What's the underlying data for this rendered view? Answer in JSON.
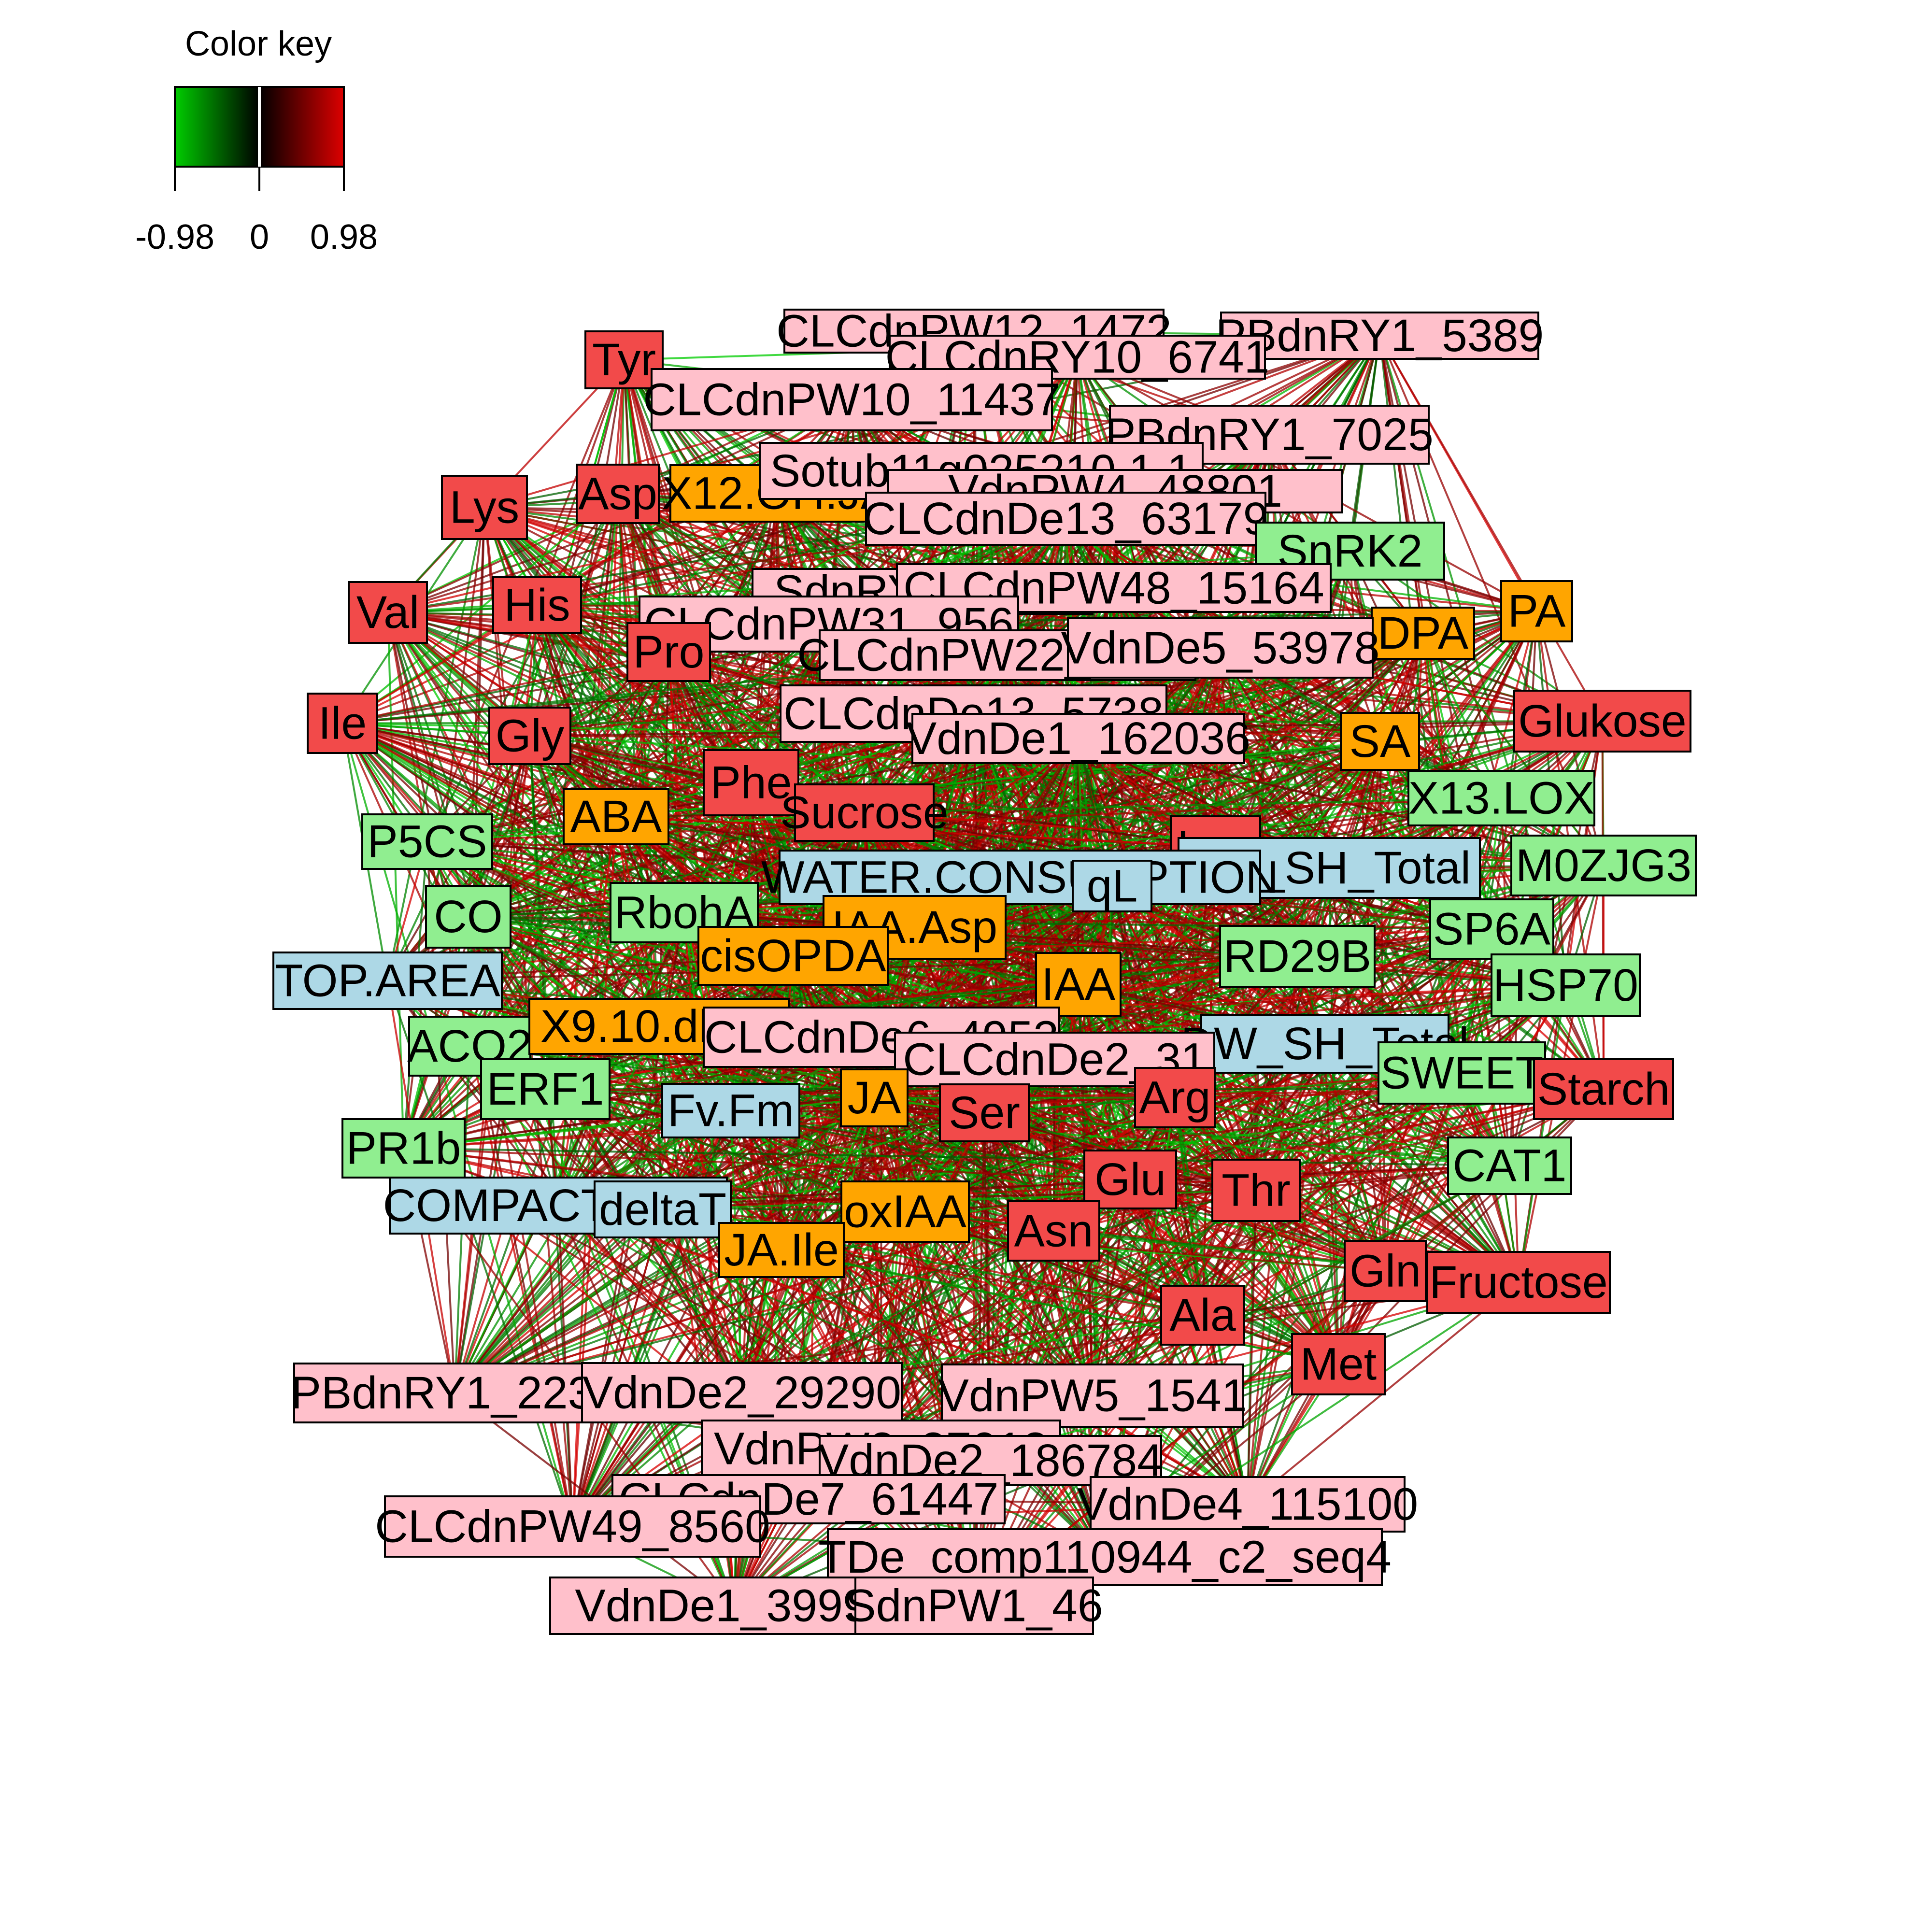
{
  "color_key": {
    "title": "Color key",
    "min_label": "-0.98",
    "mid_label": "0",
    "max_label": "0.98",
    "negative_color": "#00CC00",
    "zero_color": "#000000",
    "positive_color": "#DD0000"
  },
  "category_colors": {
    "metabolite": "#F24A4A",
    "gene_transcript": "#FFC0CB",
    "hormone": "#FFA500",
    "gene": "#90EE90",
    "phenotype": "#ADD8E6"
  },
  "nodes": [
    {
      "label": "Tyr",
      "category": "metabolite"
    },
    {
      "label": "CLCdnPW12_1472",
      "category": "gene_transcript"
    },
    {
      "label": "PBdnRY1_5389",
      "category": "gene_transcript"
    },
    {
      "label": "CLCdnRY10_6741",
      "category": "gene_transcript"
    },
    {
      "label": "CLCdnPW10_11437",
      "category": "gene_transcript"
    },
    {
      "label": "PBdnRY1_7025",
      "category": "gene_transcript"
    },
    {
      "label": "Lys",
      "category": "metabolite"
    },
    {
      "label": "Asp",
      "category": "metabolite"
    },
    {
      "label": "X12.OH.JA",
      "category": "hormone"
    },
    {
      "label": "Sotub11g025210.1.1",
      "category": "gene_transcript"
    },
    {
      "label": "VdnPW4_48801",
      "category": "gene_transcript"
    },
    {
      "label": "CLCdnDe13_63179",
      "category": "gene_transcript"
    },
    {
      "label": "SnRK2",
      "category": "gene"
    },
    {
      "label": "Val",
      "category": "metabolite"
    },
    {
      "label": "His",
      "category": "metabolite"
    },
    {
      "label": "SdnRY1_1072",
      "category": "gene_transcript"
    },
    {
      "label": "CLCdnPW48_15164",
      "category": "gene_transcript"
    },
    {
      "label": "PA",
      "category": "hormone"
    },
    {
      "label": "CLCdnPW31_956",
      "category": "gene_transcript"
    },
    {
      "label": "DPA",
      "category": "hormone"
    },
    {
      "label": "Pro",
      "category": "metabolite"
    },
    {
      "label": "CLCdnPW22_15452",
      "category": "gene_transcript"
    },
    {
      "label": "VdnDe5_53978",
      "category": "gene_transcript"
    },
    {
      "label": "Ile",
      "category": "metabolite"
    },
    {
      "label": "Gly",
      "category": "metabolite"
    },
    {
      "label": "CLCdnDe13_5738",
      "category": "gene_transcript"
    },
    {
      "label": "Glukose",
      "category": "metabolite"
    },
    {
      "label": "SA",
      "category": "hormone"
    },
    {
      "label": "VdnDe1_162036",
      "category": "gene_transcript"
    },
    {
      "label": "Phe",
      "category": "metabolite"
    },
    {
      "label": "X13.LOX",
      "category": "gene"
    },
    {
      "label": "P5CS",
      "category": "gene"
    },
    {
      "label": "ABA",
      "category": "hormone"
    },
    {
      "label": "Sucrose",
      "category": "metabolite"
    },
    {
      "label": "Leu",
      "category": "metabolite"
    },
    {
      "label": "M0ZJG3",
      "category": "gene"
    },
    {
      "label": "FW_SH_Total",
      "category": "phenotype"
    },
    {
      "label": "WATER.CONSUMPTION",
      "category": "phenotype"
    },
    {
      "label": "qL",
      "category": "phenotype"
    },
    {
      "label": "CO",
      "category": "gene"
    },
    {
      "label": "RbohA",
      "category": "gene"
    },
    {
      "label": "IAA.Asp",
      "category": "hormone"
    },
    {
      "label": "SP6A",
      "category": "gene"
    },
    {
      "label": "TOP.AREA",
      "category": "phenotype"
    },
    {
      "label": "cisOPDA",
      "category": "hormone"
    },
    {
      "label": "RD29B",
      "category": "gene"
    },
    {
      "label": "HSP70",
      "category": "gene"
    },
    {
      "label": "IAA",
      "category": "hormone"
    },
    {
      "label": "ACO2",
      "category": "gene"
    },
    {
      "label": "X9.10.dhJA",
      "category": "hormone"
    },
    {
      "label": "CLCdnDe6_4953",
      "category": "gene_transcript"
    },
    {
      "label": "DW_SH_Total",
      "category": "phenotype"
    },
    {
      "label": "CLCdnDe2_31",
      "category": "gene_transcript"
    },
    {
      "label": "SWEET",
      "category": "gene"
    },
    {
      "label": "ERF1",
      "category": "gene"
    },
    {
      "label": "Starch",
      "category": "metabolite"
    },
    {
      "label": "Fv.Fm",
      "category": "phenotype"
    },
    {
      "label": "JA",
      "category": "hormone"
    },
    {
      "label": "Arg",
      "category": "metabolite"
    },
    {
      "label": "Ser",
      "category": "metabolite"
    },
    {
      "label": "PR1b",
      "category": "gene"
    },
    {
      "label": "CAT1",
      "category": "gene"
    },
    {
      "label": "Glu",
      "category": "metabolite"
    },
    {
      "label": "Thr",
      "category": "metabolite"
    },
    {
      "label": "COMPACTNESS",
      "category": "phenotype"
    },
    {
      "label": "deltaT",
      "category": "phenotype"
    },
    {
      "label": "oxIAA",
      "category": "hormone"
    },
    {
      "label": "Asn",
      "category": "metabolite"
    },
    {
      "label": "JA.Ile",
      "category": "hormone"
    },
    {
      "label": "Gln",
      "category": "metabolite"
    },
    {
      "label": "Fructose",
      "category": "metabolite"
    },
    {
      "label": "Ala",
      "category": "metabolite"
    },
    {
      "label": "Met",
      "category": "metabolite"
    },
    {
      "label": "PBdnRY1_2239",
      "category": "gene_transcript"
    },
    {
      "label": "VdnDe2_29290",
      "category": "gene_transcript"
    },
    {
      "label": "VdnPW5_1541",
      "category": "gene_transcript"
    },
    {
      "label": "VdnPW3_37018",
      "category": "gene_transcript"
    },
    {
      "label": "VdnDe2_186784",
      "category": "gene_transcript"
    },
    {
      "label": "CLCdnDe7_61447",
      "category": "gene_transcript"
    },
    {
      "label": "VdnDe4_115100",
      "category": "gene_transcript"
    },
    {
      "label": "CLCdnPW49_8560",
      "category": "gene_transcript"
    },
    {
      "label": "TDe_comp110944_c2_seq4",
      "category": "gene_transcript"
    },
    {
      "label": "VdnDe1_39992",
      "category": "gene_transcript"
    },
    {
      "label": "SdnPW1_46",
      "category": "gene_transcript"
    }
  ]
}
